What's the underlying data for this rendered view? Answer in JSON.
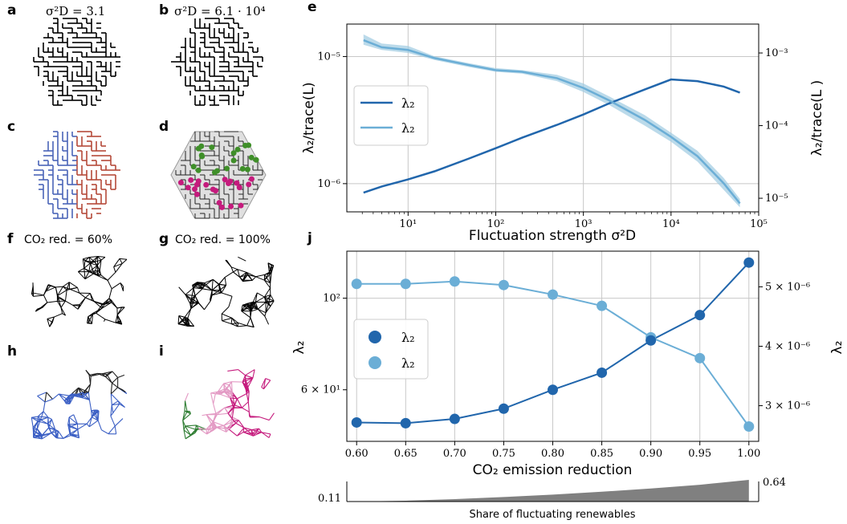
{
  "panels": {
    "a": {
      "label": "a",
      "title": "σ²D = 3.1"
    },
    "b": {
      "label": "b",
      "title": "σ²D = 6.1 · 10⁴"
    },
    "c": {
      "label": "c"
    },
    "d": {
      "label": "d"
    },
    "f": {
      "label": "f",
      "title": "CO₂ red. = 60%"
    },
    "g": {
      "label": "g",
      "title": "CO₂ red. = 100%"
    },
    "h": {
      "label": "h"
    },
    "i": {
      "label": "i"
    },
    "e": {
      "label": "e"
    },
    "j": {
      "label": "j"
    }
  },
  "colors": {
    "dark_blue": "#2166ac",
    "light_blue": "#6baed6",
    "band": "#9ecae1",
    "red": "#b2182b",
    "green": "#3f8f29",
    "magenta": "#c51b7d",
    "grey_fill": "#808080"
  },
  "chart_data": [
    {
      "id": "e",
      "type": "line",
      "xlabel": "Fluctuation strength σ²D",
      "ylabel": "λ₂/trace(L)",
      "ylabel_right": "λ₂/trace(L )",
      "xscale": "log",
      "yscale": "log",
      "xlim": [
        2,
        100000
      ],
      "ylim": [
        6e-07,
        1.8e-05
      ],
      "ylim_right": [
        6.5e-06,
        0.0025
      ],
      "grid": true,
      "legend_position": "center-left",
      "x_ticks": [
        "10¹",
        "10²",
        "10³",
        "10⁴",
        "10⁵"
      ],
      "y_ticks_left": [
        "10⁻⁶",
        "10⁻⁵"
      ],
      "y_ticks_right": [
        "10⁻⁵",
        "10⁻⁴",
        "10⁻³"
      ],
      "series": [
        {
          "name": "λ₂",
          "axis": "left",
          "x": [
            3.1,
            5,
            10,
            20,
            50,
            100,
            200,
            500,
            1000,
            2000,
            5000,
            10000,
            20000,
            40000,
            61000
          ],
          "y": [
            8.5e-07,
            9.5e-07,
            1.08e-06,
            1.25e-06,
            1.58e-06,
            1.9e-06,
            2.3e-06,
            2.9e-06,
            3.5e-06,
            4.3e-06,
            5.5e-06,
            6.6e-06,
            6.4e-06,
            5.8e-06,
            5.2e-06
          ]
        },
        {
          "name": "λ₂",
          "axis": "right",
          "x": [
            3.1,
            5,
            10,
            20,
            50,
            100,
            200,
            500,
            1000,
            2000,
            5000,
            10000,
            20000,
            40000,
            61000
          ],
          "y": [
            0.0015,
            0.0012,
            0.0011,
            0.00085,
            0.00068,
            0.00058,
            0.00055,
            0.00045,
            0.00033,
            0.00022,
            0.00012,
            7e-05,
            3.8e-05,
            1.6e-05,
            8.5e-06
          ],
          "band_low": [
            0.0013,
            0.0011,
            0.001,
            0.0008,
            0.00064,
            0.00055,
            0.00052,
            0.00041,
            0.00029,
            0.00019,
            0.0001,
            6e-05,
            3.2e-05,
            1.3e-05,
            7.5e-06
          ],
          "band_high": [
            0.0018,
            0.00135,
            0.00125,
            0.0009,
            0.00072,
            0.00062,
            0.00058,
            0.0005,
            0.00038,
            0.00025,
            0.00014,
            8e-05,
            4.5e-05,
            1.9e-05,
            9.8e-06
          ]
        }
      ]
    },
    {
      "id": "j",
      "type": "line",
      "xlabel": "CO₂ emission reduction",
      "ylabel": "λ₂",
      "ylabel_right": "λ₂",
      "yscale": "log",
      "xlim": [
        0.59,
        1.01
      ],
      "ylim": [
        45,
        130
      ],
      "ylim_right": [
        2.4e-06,
        5.6e-06
      ],
      "grid": true,
      "legend_position": "center-left",
      "x_ticks": [
        "0.60",
        "0.65",
        "0.70",
        "0.75",
        "0.80",
        "0.85",
        "0.90",
        "0.95",
        "1.00"
      ],
      "y_ticks_left": [
        "6 × 10¹",
        "10²"
      ],
      "y_ticks_right": [
        "3 × 10⁻⁶",
        "4 × 10⁻⁶",
        "5 × 10⁻⁶"
      ],
      "series": [
        {
          "name": "λ₂",
          "axis": "left",
          "x": [
            0.6,
            0.65,
            0.7,
            0.75,
            0.8,
            0.85,
            0.9,
            0.95,
            1.0
          ],
          "y": [
            50,
            49.8,
            51,
            54,
            60,
            66,
            79,
            91,
            122
          ]
        },
        {
          "name": "λ₂",
          "axis": "right",
          "x": [
            0.6,
            0.65,
            0.7,
            0.75,
            0.8,
            0.85,
            0.9,
            0.95,
            1.0
          ],
          "y": [
            5.05e-06,
            5.05e-06,
            5.09e-06,
            5.03e-06,
            4.87e-06,
            4.68e-06,
            4.15e-06,
            3.8e-06,
            2.65e-06
          ]
        }
      ]
    },
    {
      "id": "share",
      "type": "area",
      "xlabel": "Share of fluctuating renewables",
      "ylim": [
        0.11,
        0.64
      ],
      "y_ticks": [
        "0.11",
        "0.64"
      ],
      "x": [
        0.6,
        0.65,
        0.7,
        0.75,
        0.8,
        0.85,
        0.9,
        0.95,
        1.0
      ],
      "values": [
        0.11,
        0.13,
        0.17,
        0.22,
        0.28,
        0.35,
        0.43,
        0.52,
        0.64
      ]
    }
  ]
}
